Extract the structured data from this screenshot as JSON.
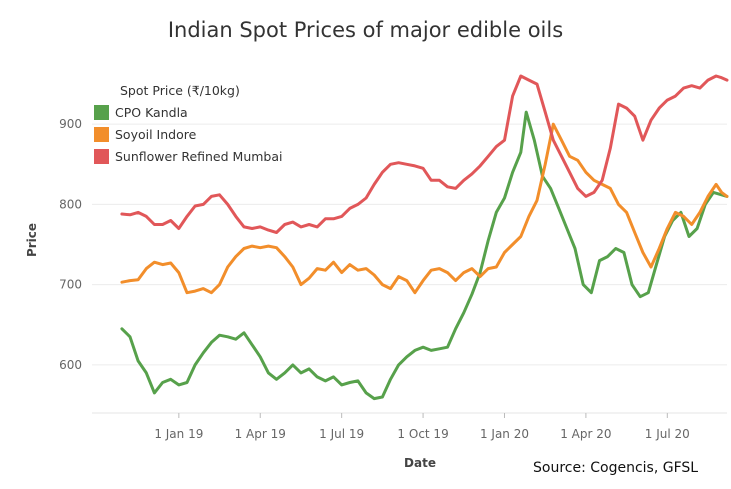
{
  "chart_data": {
    "type": "line",
    "title": "Indian Spot Prices of major edible oils",
    "xlabel": "Date",
    "ylabel": "Price",
    "ylim": [
      540,
      980
    ],
    "yticks": [
      600,
      700,
      800,
      900
    ],
    "xticks": [
      {
        "label": "1 Jan 19",
        "m": 12
      },
      {
        "label": "1 Apr 19",
        "m": 15
      },
      {
        "label": "1 Jul 19",
        "m": 18
      },
      {
        "label": "1 Oct 19",
        "m": 21
      },
      {
        "label": "1 Jan 20",
        "m": 24
      },
      {
        "label": "1 Apr 20",
        "m": 27
      },
      {
        "label": "1 Jul 20",
        "m": 30
      }
    ],
    "xrange": [
      8.8,
      32.2
    ],
    "grid": true,
    "legend": {
      "title": "Spot Price (₹/10kg)",
      "placement": "top-left"
    },
    "series": [
      {
        "name": "CPO Kandla",
        "color": "#57a14b",
        "points": [
          [
            9.9,
            645
          ],
          [
            10.2,
            635
          ],
          [
            10.5,
            605
          ],
          [
            10.8,
            590
          ],
          [
            11.1,
            565
          ],
          [
            11.4,
            578
          ],
          [
            11.7,
            582
          ],
          [
            12.0,
            575
          ],
          [
            12.3,
            578
          ],
          [
            12.6,
            600
          ],
          [
            12.9,
            615
          ],
          [
            13.2,
            628
          ],
          [
            13.5,
            637
          ],
          [
            13.8,
            635
          ],
          [
            14.1,
            632
          ],
          [
            14.4,
            640
          ],
          [
            14.7,
            625
          ],
          [
            15.0,
            610
          ],
          [
            15.3,
            590
          ],
          [
            15.6,
            582
          ],
          [
            15.9,
            590
          ],
          [
            16.2,
            600
          ],
          [
            16.5,
            590
          ],
          [
            16.8,
            595
          ],
          [
            17.1,
            585
          ],
          [
            17.4,
            580
          ],
          [
            17.7,
            585
          ],
          [
            18.0,
            575
          ],
          [
            18.3,
            578
          ],
          [
            18.6,
            580
          ],
          [
            18.9,
            565
          ],
          [
            19.2,
            558
          ],
          [
            19.5,
            560
          ],
          [
            19.8,
            582
          ],
          [
            20.1,
            600
          ],
          [
            20.4,
            610
          ],
          [
            20.7,
            618
          ],
          [
            21.0,
            622
          ],
          [
            21.3,
            618
          ],
          [
            21.6,
            620
          ],
          [
            21.9,
            622
          ],
          [
            22.2,
            645
          ],
          [
            22.5,
            665
          ],
          [
            22.8,
            688
          ],
          [
            23.1,
            715
          ],
          [
            23.4,
            755
          ],
          [
            23.7,
            790
          ],
          [
            24.0,
            808
          ],
          [
            24.3,
            840
          ],
          [
            24.6,
            865
          ],
          [
            24.8,
            915
          ],
          [
            25.1,
            880
          ],
          [
            25.4,
            835
          ],
          [
            25.7,
            820
          ],
          [
            26.0,
            795
          ],
          [
            26.3,
            770
          ],
          [
            26.6,
            745
          ],
          [
            26.9,
            700
          ],
          [
            27.2,
            690
          ],
          [
            27.5,
            730
          ],
          [
            27.8,
            735
          ],
          [
            28.1,
            745
          ],
          [
            28.4,
            740
          ],
          [
            28.7,
            700
          ],
          [
            29.0,
            685
          ],
          [
            29.3,
            690
          ],
          [
            29.6,
            725
          ],
          [
            29.9,
            760
          ],
          [
            30.2,
            780
          ],
          [
            30.5,
            790
          ],
          [
            30.8,
            760
          ],
          [
            31.1,
            770
          ],
          [
            31.4,
            800
          ],
          [
            31.7,
            815
          ],
          [
            32.0,
            812
          ],
          [
            32.2,
            810
          ]
        ]
      },
      {
        "name": "Soyoil Indore",
        "color": "#f28e2b",
        "points": [
          [
            9.9,
            703
          ],
          [
            10.2,
            705
          ],
          [
            10.5,
            706
          ],
          [
            10.8,
            720
          ],
          [
            11.1,
            728
          ],
          [
            11.4,
            725
          ],
          [
            11.7,
            727
          ],
          [
            12.0,
            715
          ],
          [
            12.3,
            690
          ],
          [
            12.6,
            692
          ],
          [
            12.9,
            695
          ],
          [
            13.2,
            690
          ],
          [
            13.5,
            700
          ],
          [
            13.8,
            722
          ],
          [
            14.1,
            735
          ],
          [
            14.4,
            745
          ],
          [
            14.7,
            748
          ],
          [
            15.0,
            746
          ],
          [
            15.3,
            748
          ],
          [
            15.6,
            746
          ],
          [
            15.9,
            735
          ],
          [
            16.2,
            722
          ],
          [
            16.5,
            700
          ],
          [
            16.8,
            708
          ],
          [
            17.1,
            720
          ],
          [
            17.4,
            718
          ],
          [
            17.7,
            728
          ],
          [
            18.0,
            715
          ],
          [
            18.3,
            725
          ],
          [
            18.6,
            718
          ],
          [
            18.9,
            720
          ],
          [
            19.2,
            712
          ],
          [
            19.5,
            700
          ],
          [
            19.8,
            695
          ],
          [
            20.1,
            710
          ],
          [
            20.4,
            705
          ],
          [
            20.7,
            690
          ],
          [
            21.0,
            705
          ],
          [
            21.3,
            718
          ],
          [
            21.6,
            720
          ],
          [
            21.9,
            715
          ],
          [
            22.2,
            705
          ],
          [
            22.5,
            715
          ],
          [
            22.8,
            720
          ],
          [
            23.1,
            710
          ],
          [
            23.4,
            720
          ],
          [
            23.7,
            722
          ],
          [
            24.0,
            740
          ],
          [
            24.3,
            750
          ],
          [
            24.6,
            760
          ],
          [
            24.9,
            785
          ],
          [
            25.2,
            805
          ],
          [
            25.5,
            850
          ],
          [
            25.8,
            900
          ],
          [
            26.1,
            880
          ],
          [
            26.4,
            860
          ],
          [
            26.7,
            855
          ],
          [
            27.0,
            840
          ],
          [
            27.3,
            830
          ],
          [
            27.6,
            825
          ],
          [
            27.9,
            820
          ],
          [
            28.2,
            800
          ],
          [
            28.5,
            790
          ],
          [
            28.8,
            765
          ],
          [
            29.1,
            740
          ],
          [
            29.4,
            722
          ],
          [
            29.7,
            745
          ],
          [
            30.0,
            770
          ],
          [
            30.3,
            790
          ],
          [
            30.6,
            785
          ],
          [
            30.9,
            775
          ],
          [
            31.2,
            790
          ],
          [
            31.5,
            810
          ],
          [
            31.8,
            825
          ],
          [
            32.0,
            815
          ],
          [
            32.2,
            810
          ]
        ]
      },
      {
        "name": "Sunflower Refined Mumbai",
        "color": "#e15759",
        "points": [
          [
            9.9,
            788
          ],
          [
            10.2,
            787
          ],
          [
            10.5,
            790
          ],
          [
            10.8,
            785
          ],
          [
            11.1,
            775
          ],
          [
            11.4,
            775
          ],
          [
            11.7,
            780
          ],
          [
            12.0,
            770
          ],
          [
            12.3,
            785
          ],
          [
            12.6,
            798
          ],
          [
            12.9,
            800
          ],
          [
            13.2,
            810
          ],
          [
            13.5,
            812
          ],
          [
            13.8,
            800
          ],
          [
            14.1,
            785
          ],
          [
            14.4,
            772
          ],
          [
            14.7,
            770
          ],
          [
            15.0,
            772
          ],
          [
            15.3,
            768
          ],
          [
            15.6,
            765
          ],
          [
            15.9,
            775
          ],
          [
            16.2,
            778
          ],
          [
            16.5,
            772
          ],
          [
            16.8,
            775
          ],
          [
            17.1,
            772
          ],
          [
            17.4,
            782
          ],
          [
            17.7,
            782
          ],
          [
            18.0,
            785
          ],
          [
            18.3,
            795
          ],
          [
            18.6,
            800
          ],
          [
            18.9,
            808
          ],
          [
            19.2,
            825
          ],
          [
            19.5,
            840
          ],
          [
            19.8,
            850
          ],
          [
            20.1,
            852
          ],
          [
            20.4,
            850
          ],
          [
            20.7,
            848
          ],
          [
            21.0,
            845
          ],
          [
            21.3,
            830
          ],
          [
            21.6,
            830
          ],
          [
            21.9,
            822
          ],
          [
            22.2,
            820
          ],
          [
            22.5,
            830
          ],
          [
            22.8,
            838
          ],
          [
            23.1,
            848
          ],
          [
            23.4,
            860
          ],
          [
            23.7,
            872
          ],
          [
            24.0,
            880
          ],
          [
            24.3,
            935
          ],
          [
            24.6,
            960
          ],
          [
            24.9,
            955
          ],
          [
            25.2,
            950
          ],
          [
            25.5,
            915
          ],
          [
            25.8,
            880
          ],
          [
            26.1,
            860
          ],
          [
            26.4,
            840
          ],
          [
            26.7,
            820
          ],
          [
            27.0,
            810
          ],
          [
            27.3,
            815
          ],
          [
            27.6,
            830
          ],
          [
            27.9,
            870
          ],
          [
            28.2,
            925
          ],
          [
            28.5,
            920
          ],
          [
            28.8,
            910
          ],
          [
            29.1,
            880
          ],
          [
            29.4,
            905
          ],
          [
            29.7,
            920
          ],
          [
            30.0,
            930
          ],
          [
            30.3,
            935
          ],
          [
            30.6,
            945
          ],
          [
            30.9,
            948
          ],
          [
            31.2,
            945
          ],
          [
            31.5,
            955
          ],
          [
            31.8,
            960
          ],
          [
            32.0,
            958
          ],
          [
            32.2,
            955
          ]
        ]
      }
    ]
  },
  "source": "Source: Cogencis, GFSL"
}
